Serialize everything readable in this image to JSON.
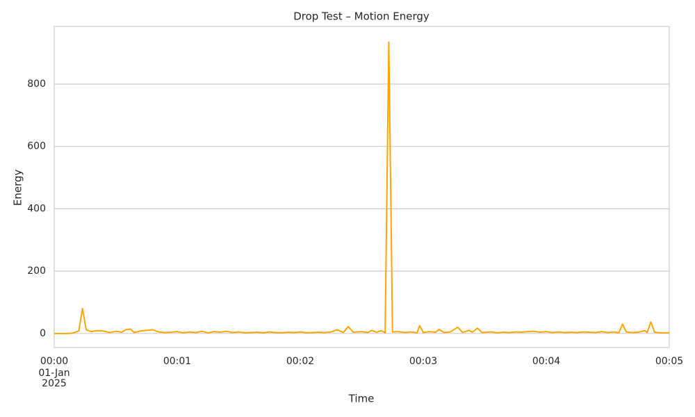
{
  "chart_data": {
    "type": "line",
    "title": "Drop Test – Motion Energy",
    "x_label": "Time",
    "y_label": "Energy",
    "x_date_label": [
      "01-Jan",
      "2025"
    ],
    "series": [
      {
        "name": "Energy",
        "color": "#ffa500",
        "x": [
          0,
          0.05,
          0.1,
          0.15,
          0.2,
          0.23,
          0.26,
          0.3,
          0.35,
          0.4,
          0.45,
          0.5,
          0.55,
          0.58,
          0.62,
          0.65,
          0.7,
          0.75,
          0.8,
          0.85,
          0.9,
          0.95,
          1.0,
          1.05,
          1.1,
          1.15,
          1.2,
          1.25,
          1.3,
          1.35,
          1.4,
          1.45,
          1.5,
          1.55,
          1.6,
          1.65,
          1.7,
          1.75,
          1.8,
          1.85,
          1.9,
          1.95,
          2.0,
          2.05,
          2.1,
          2.15,
          2.2,
          2.25,
          2.3,
          2.35,
          2.39,
          2.43,
          2.5,
          2.55,
          2.58,
          2.62,
          2.66,
          2.69,
          2.72,
          2.75,
          2.8,
          2.85,
          2.9,
          2.95,
          2.97,
          3.0,
          3.05,
          3.1,
          3.13,
          3.17,
          3.22,
          3.28,
          3.32,
          3.37,
          3.4,
          3.44,
          3.48,
          3.55,
          3.6,
          3.65,
          3.7,
          3.75,
          3.8,
          3.85,
          3.9,
          3.95,
          4.0,
          4.05,
          4.1,
          4.15,
          4.2,
          4.25,
          4.3,
          4.35,
          4.4,
          4.45,
          4.5,
          4.55,
          4.59,
          4.62,
          4.65,
          4.7,
          4.75,
          4.8,
          4.82,
          4.85,
          4.88,
          4.93,
          5.0
        ],
        "values": [
          0,
          0,
          0,
          1,
          8,
          80,
          12,
          6,
          9,
          8,
          3,
          7,
          4,
          12,
          14,
          3,
          8,
          10,
          12,
          5,
          3,
          4,
          6,
          2,
          5,
          3,
          7,
          2,
          6,
          4,
          7,
          3,
          5,
          2,
          3,
          4,
          2,
          5,
          3,
          2,
          4,
          3,
          5,
          2,
          3,
          4,
          3,
          5,
          12,
          3,
          22,
          4,
          6,
          3,
          10,
          4,
          9,
          2,
          935,
          5,
          6,
          3,
          5,
          2,
          25,
          3,
          6,
          4,
          13,
          3,
          5,
          20,
          3,
          10,
          4,
          17,
          3,
          5,
          2,
          4,
          3,
          5,
          4,
          6,
          7,
          4,
          6,
          3,
          5,
          3,
          4,
          3,
          5,
          4,
          3,
          6,
          3,
          5,
          2,
          30,
          5,
          3,
          4,
          9,
          3,
          37,
          4,
          2,
          2
        ]
      }
    ],
    "xlim": [
      0,
      5
    ],
    "xticks": [
      {
        "value": 0,
        "label": "00:00"
      },
      {
        "value": 1,
        "label": "00:01"
      },
      {
        "value": 2,
        "label": "00:02"
      },
      {
        "value": 3,
        "label": "00:03"
      },
      {
        "value": 4,
        "label": "00:04"
      },
      {
        "value": 5,
        "label": "00:05"
      }
    ],
    "ylim": [
      -45,
      985
    ],
    "yticks": [
      0,
      200,
      400,
      600,
      800
    ],
    "grid": true
  }
}
